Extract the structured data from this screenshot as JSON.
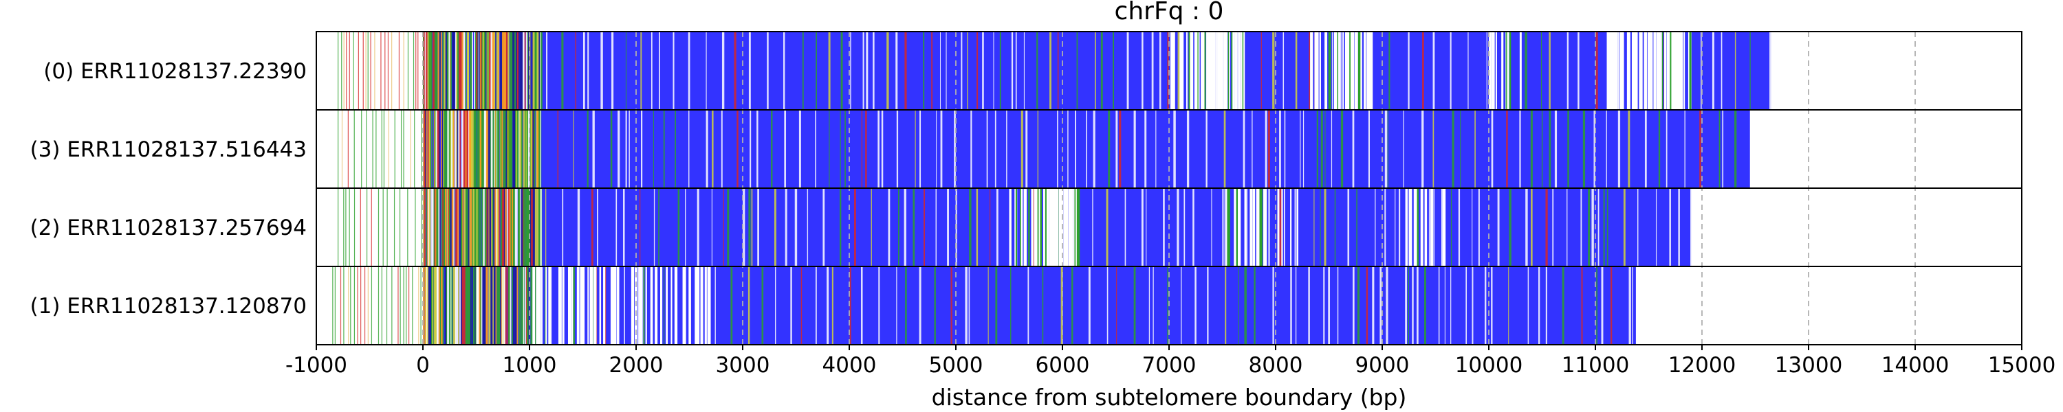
{
  "chart_data": {
    "type": "table",
    "title": "chrFq : 0",
    "xlabel": "distance from subtelomere boundary (bp)",
    "xlim": [
      -1000,
      15000
    ],
    "xticks": [
      -1000,
      0,
      1000,
      2000,
      3000,
      4000,
      5000,
      6000,
      7000,
      8000,
      9000,
      10000,
      11000,
      12000,
      13000,
      14000,
      15000
    ],
    "grid": "vertical dashed at x ticks",
    "colors": {
      "background_repeat": "#3333ff",
      "green_variant": "#2ca02c",
      "orange_variant": "#ff9f1c",
      "red_variant": "#d62728",
      "yellow_variant": "#d4d43a",
      "gap": "#ffffff",
      "grid": "#b0b0b0"
    },
    "reads": [
      {
        "label": "(0) ERR11028137.22390",
        "start": -800,
        "end": 12650,
        "seed": 11,
        "white_zones": [
          [
            7000,
            7700,
            0.55
          ],
          [
            8300,
            8900,
            0.4
          ],
          [
            10000,
            10300,
            0.25
          ],
          [
            11100,
            11500,
            0.45
          ],
          [
            11500,
            11900,
            0.5
          ]
        ]
      },
      {
        "label": "(3) ERR11028137.516443",
        "start": -800,
        "end": 12450,
        "seed": 23,
        "white_zones": []
      },
      {
        "label": "(2) ERR11028137.257694",
        "start": -800,
        "end": 11900,
        "seed": 37,
        "white_zones": [
          [
            5500,
            6150,
            0.6
          ],
          [
            7500,
            7900,
            0.45
          ],
          [
            8000,
            8200,
            0.3
          ],
          [
            9200,
            9600,
            0.3
          ]
        ]
      },
      {
        "label": "(1) ERR11028137.120870",
        "start": -850,
        "end": 11380,
        "seed": 53,
        "white_zones": [
          [
            1000,
            2700,
            0.25
          ]
        ]
      }
    ]
  }
}
